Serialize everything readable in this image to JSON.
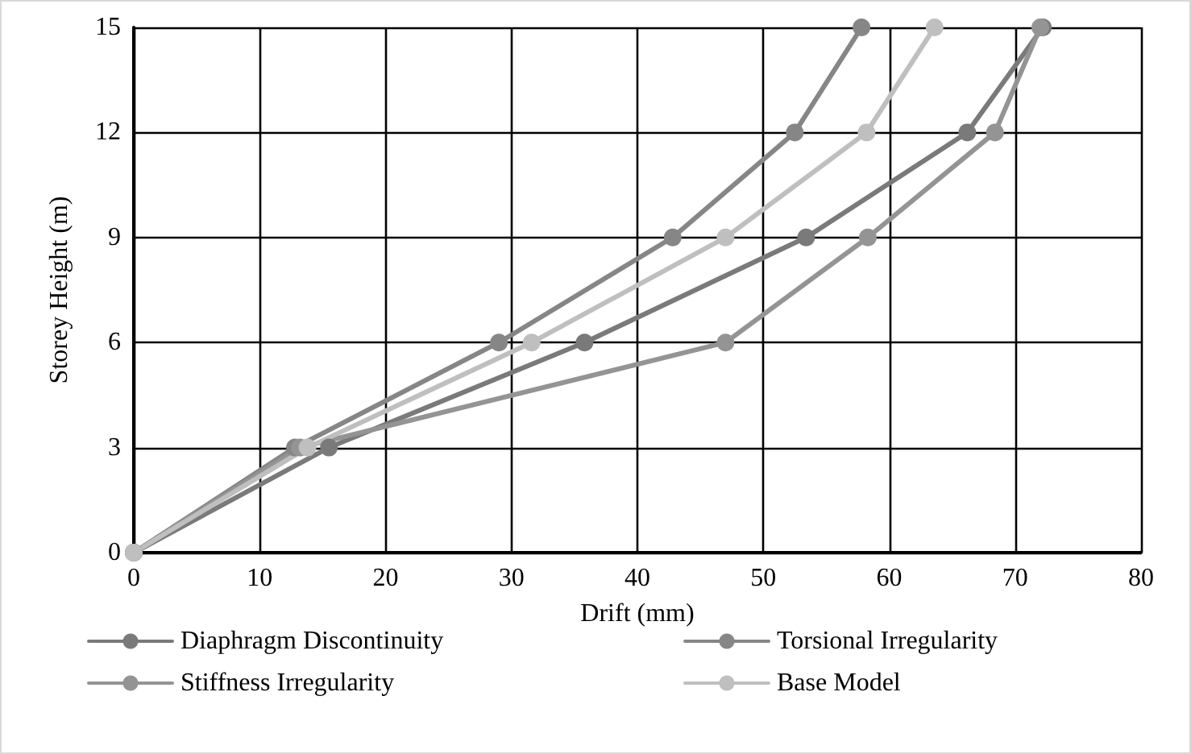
{
  "chart_data": {
    "type": "line",
    "xlabel": "Drift (mm)",
    "ylabel": "Storey Height (m)",
    "xlim": [
      0,
      80
    ],
    "xticks": [
      0,
      10,
      20,
      30,
      40,
      50,
      60,
      70,
      80
    ],
    "ylim": [
      0,
      15
    ],
    "yticks": [
      0,
      3,
      6,
      9,
      12,
      15
    ],
    "grid": true,
    "legend": "bottom",
    "marker": "circle",
    "line_style": "solid",
    "series": [
      {
        "name": "Diaphragm Discontinuity",
        "color": "#7a7a7a",
        "x": [
          0,
          15.5,
          35.8,
          53.4,
          66.2,
          72.2
        ],
        "values": [
          0,
          3,
          6,
          9,
          12,
          15
        ]
      },
      {
        "name": "Torsional Irregularity",
        "color": "#868686",
        "x": [
          0,
          12.8,
          29,
          42.8,
          52.5,
          57.8
        ],
        "values": [
          0,
          3,
          6,
          9,
          12,
          15
        ]
      },
      {
        "name": "Stiffness Irregularity",
        "color": "#949494",
        "x": [
          0,
          13.2,
          47,
          58.3,
          68.4,
          72
        ],
        "values": [
          0,
          3,
          6,
          9,
          12,
          15
        ]
      },
      {
        "name": "Base Model",
        "color": "#bfbfbf",
        "x": [
          0,
          13.8,
          31.6,
          47,
          58.2,
          63.6
        ],
        "values": [
          0,
          3,
          6,
          9,
          12,
          15
        ]
      }
    ]
  }
}
